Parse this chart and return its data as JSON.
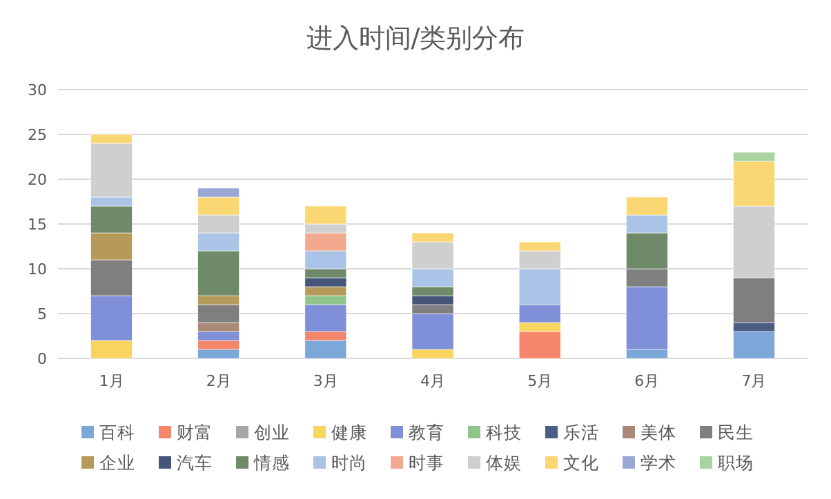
{
  "chart_data": {
    "type": "bar",
    "stacked": true,
    "title": "进入时间/类别分布",
    "categories": [
      "1月",
      "2月",
      "3月",
      "4月",
      "5月",
      "6月",
      "7月"
    ],
    "ylim": [
      0,
      30
    ],
    "yticks": [
      0,
      5,
      10,
      15,
      20,
      25,
      30
    ],
    "grid": "y",
    "legend": "bottom",
    "series": [
      {
        "name": "百科",
        "color": "#7ba7d9",
        "values": [
          0,
          1,
          2,
          0,
          0,
          1,
          3
        ]
      },
      {
        "name": "财富",
        "color": "#f4876b",
        "values": [
          0,
          1,
          1,
          0,
          3,
          0,
          0
        ]
      },
      {
        "name": "创业",
        "color": "#a6a6a6",
        "values": [
          0,
          0,
          0,
          0,
          0,
          0,
          0
        ]
      },
      {
        "name": "健康",
        "color": "#f9d55f",
        "values": [
          2,
          0,
          0,
          1,
          1,
          0,
          0
        ]
      },
      {
        "name": "教育",
        "color": "#7f8fd8",
        "values": [
          5,
          1,
          3,
          4,
          2,
          7,
          0
        ]
      },
      {
        "name": "科技",
        "color": "#8fc58a",
        "values": [
          0,
          0,
          1,
          0,
          0,
          0,
          0
        ]
      },
      {
        "name": "乐活",
        "color": "#4c5d86",
        "values": [
          0,
          0,
          0,
          0,
          0,
          0,
          1
        ]
      },
      {
        "name": "美体",
        "color": "#a88a77",
        "values": [
          0,
          1,
          0,
          0,
          0,
          0,
          0
        ]
      },
      {
        "name": "民生",
        "color": "#7f7f7f",
        "values": [
          4,
          2,
          0,
          1,
          0,
          2,
          5
        ]
      },
      {
        "name": "企业",
        "color": "#b59a5a",
        "values": [
          3,
          1,
          1,
          0,
          0,
          0,
          0
        ]
      },
      {
        "name": "汽车",
        "color": "#46557a",
        "values": [
          0,
          0,
          1,
          1,
          0,
          0,
          0
        ]
      },
      {
        "name": "情感",
        "color": "#6e8a68",
        "values": [
          3,
          5,
          1,
          1,
          0,
          4,
          0
        ]
      },
      {
        "name": "时尚",
        "color": "#a9c4e6",
        "values": [
          1,
          2,
          2,
          2,
          4,
          2,
          0
        ]
      },
      {
        "name": "时事",
        "color": "#f2a98e",
        "values": [
          0,
          0,
          2,
          0,
          0,
          0,
          0
        ]
      },
      {
        "name": "体娱",
        "color": "#cfcfcf",
        "values": [
          6,
          2,
          1,
          3,
          2,
          0,
          8
        ]
      },
      {
        "name": "文化",
        "color": "#fbd774",
        "values": [
          1,
          2,
          2,
          1,
          1,
          2,
          5
        ]
      },
      {
        "name": "学术",
        "color": "#9aa8d6",
        "values": [
          0,
          1,
          0,
          0,
          0,
          0,
          0
        ]
      },
      {
        "name": "职场",
        "color": "#a9d3a0",
        "values": [
          0,
          0,
          0,
          0,
          0,
          0,
          1
        ]
      }
    ]
  }
}
